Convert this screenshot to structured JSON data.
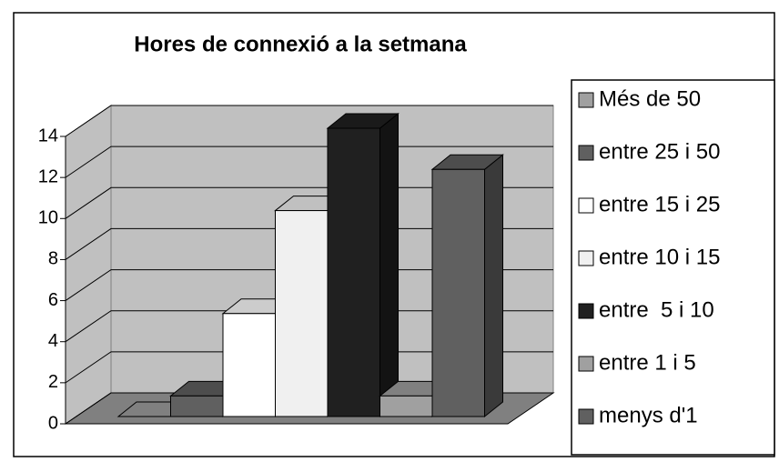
{
  "chart_data": {
    "type": "bar3d",
    "title": "Hores de connexió a la setmana",
    "series": [
      {
        "name": "Més de 50",
        "color": "#a0a0a0",
        "values": [
          0
        ]
      },
      {
        "name": "entre 25 i 50",
        "color": "#606060",
        "values": [
          1
        ]
      },
      {
        "name": "entre 15 i 25",
        "color": "#ffffff",
        "values": [
          5
        ]
      },
      {
        "name": "entre 10 i 15",
        "color": "#f0f0f0",
        "values": [
          10
        ]
      },
      {
        "name": "entre  5 i 10",
        "color": "#202020",
        "values": [
          14
        ]
      },
      {
        "name": "entre 1 i 5",
        "color": "#a0a0a0",
        "values": [
          1
        ]
      },
      {
        "name": "menys d'1",
        "color": "#606060",
        "values": [
          12
        ]
      }
    ],
    "ylim": [
      0,
      14
    ],
    "yticks": [
      0,
      2,
      4,
      6,
      8,
      10,
      12,
      14
    ],
    "grid": true,
    "legend": "right"
  }
}
